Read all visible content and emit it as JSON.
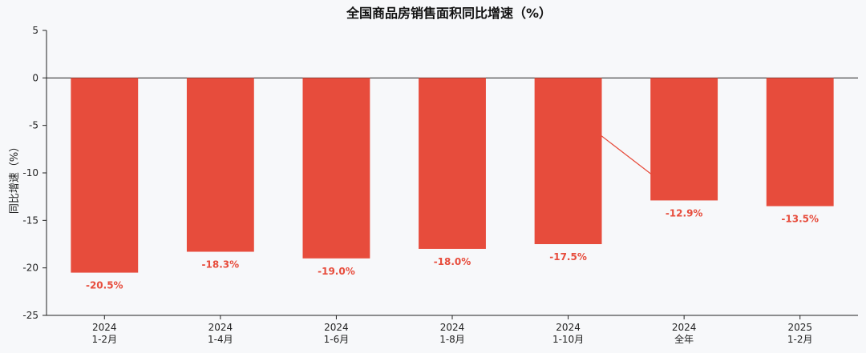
{
  "chart_data": {
    "type": "bar",
    "title": "全国商品房销售面积同比增速（%）",
    "xlabel": "",
    "ylabel": "同比增速（%）",
    "categories": [
      [
        "2024",
        "1-2月"
      ],
      [
        "2024",
        "1-4月"
      ],
      [
        "2024",
        "1-6月"
      ],
      [
        "2024",
        "1-8月"
      ],
      [
        "2024",
        "1-10月"
      ],
      [
        "2024",
        "全年"
      ],
      [
        "2025",
        "1-2月"
      ]
    ],
    "values": [
      -20.5,
      -18.3,
      -19.0,
      -18.0,
      -17.5,
      -12.9,
      -13.5
    ],
    "data_labels": [
      "-20.5%",
      "-18.3%",
      "-19.0%",
      "-18.0%",
      "-17.5%",
      "-12.9%",
      "-13.5%"
    ],
    "ylim": [
      -25,
      5
    ],
    "yticks": [
      5,
      0,
      -5,
      -10,
      -15,
      -20,
      -25
    ],
    "grid": false,
    "colors": {
      "bar": "#e74c3c",
      "label": "#e74c3c",
      "axis": "#222222",
      "zero_line": "#222222"
    }
  }
}
